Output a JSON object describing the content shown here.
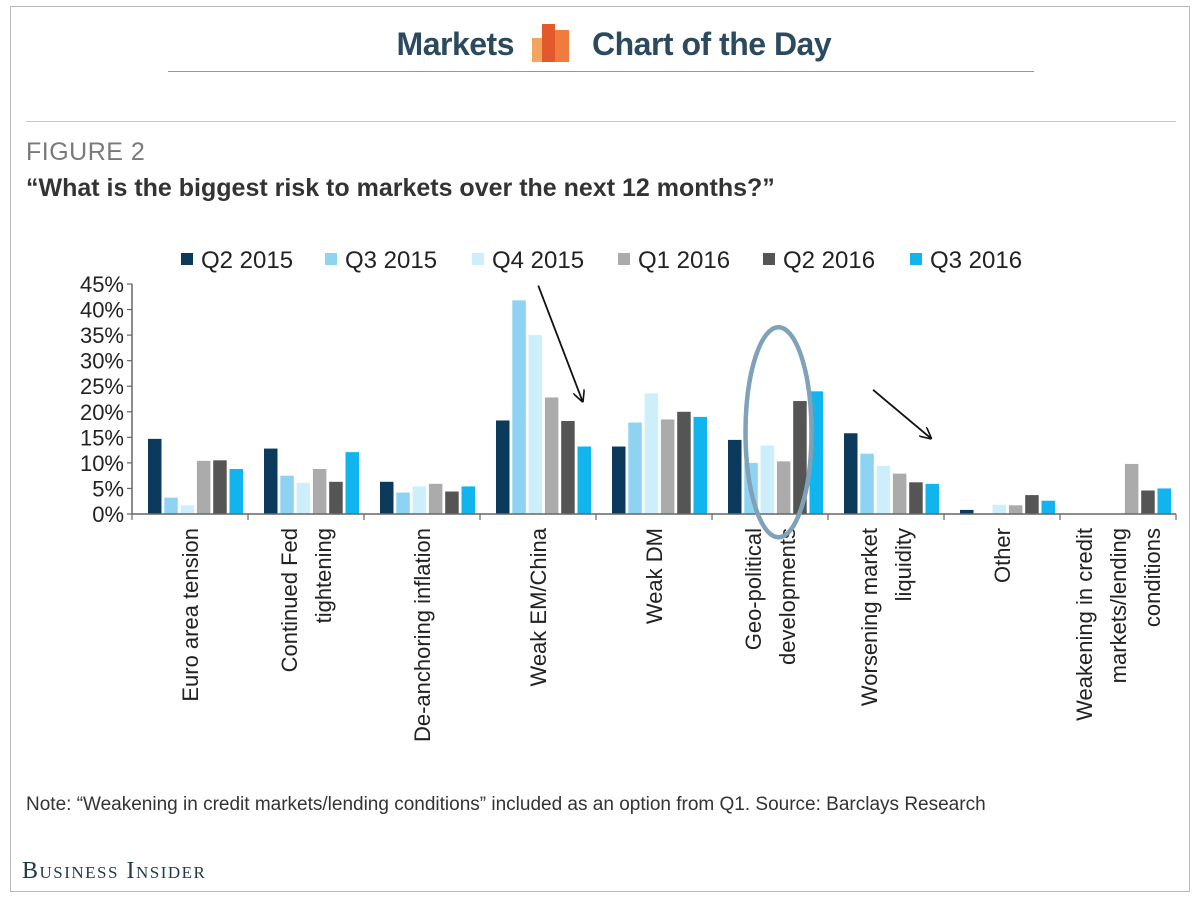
{
  "header": {
    "left_word": "Markets",
    "right_word": "Chart of the Day",
    "logo_icon": "bar-chart-logo-icon",
    "accent_color": "#e07a57"
  },
  "figure_label": "FIGURE 2",
  "note": "Note: “Weakening in credit markets/lending conditions” included as an option from Q1. Source: Barclays Research",
  "brand": "Business Insider",
  "chart_data": {
    "type": "bar",
    "title": "“What is the biggest risk to markets over the next 12 months?”",
    "xlabel": "",
    "ylabel": "",
    "ylim": [
      0,
      45
    ],
    "yticks": [
      "0%",
      "5%",
      "10%",
      "15%",
      "20%",
      "25%",
      "30%",
      "35%",
      "40%",
      "45%"
    ],
    "legend_position": "top",
    "grid": false,
    "categories": [
      [
        "Euro area tension"
      ],
      [
        "Continued Fed",
        "tightening"
      ],
      [
        "De-anchoring inflation"
      ],
      [
        "Weak EM/China"
      ],
      [
        "Weak DM"
      ],
      [
        "Geo-political",
        "developments"
      ],
      [
        "Worsening market",
        "liquidity"
      ],
      [
        "Other"
      ],
      [
        "Weakening in credit",
        "markets/lending",
        "conditions"
      ]
    ],
    "series": [
      {
        "name": "Q2 2015",
        "color": "#0b3a5c",
        "values": [
          14.7,
          12.8,
          6.3,
          18.3,
          13.2,
          14.5,
          15.8,
          0.8,
          null
        ]
      },
      {
        "name": "Q3 2015",
        "color": "#8fd3f2",
        "values": [
          3.2,
          7.5,
          4.2,
          41.8,
          17.9,
          10.0,
          11.8,
          0.0,
          null
        ]
      },
      {
        "name": "Q4 2015",
        "color": "#cdeefb",
        "values": [
          1.7,
          6.1,
          5.4,
          35.0,
          23.6,
          13.4,
          9.4,
          1.8,
          null
        ]
      },
      {
        "name": "Q1 2016",
        "color": "#ababab",
        "values": [
          10.4,
          8.8,
          5.9,
          22.8,
          18.5,
          10.3,
          7.9,
          1.7,
          9.8
        ]
      },
      {
        "name": "Q2 2016",
        "color": "#555555",
        "values": [
          10.5,
          6.3,
          4.4,
          18.2,
          20.0,
          22.1,
          6.2,
          3.7,
          4.6
        ]
      },
      {
        "name": "Q3 2016",
        "color": "#11b4ec",
        "values": [
          8.8,
          12.1,
          5.4,
          13.2,
          19.0,
          24.0,
          5.9,
          2.6,
          5.0
        ]
      }
    ],
    "annotations": [
      {
        "type": "arrow",
        "target_category": "Weak EM/China"
      },
      {
        "type": "ellipse",
        "target_category": "Geo-political developments",
        "color": "#7fa2b8"
      },
      {
        "type": "arrow",
        "target_category": "Worsening market liquidity"
      }
    ]
  }
}
